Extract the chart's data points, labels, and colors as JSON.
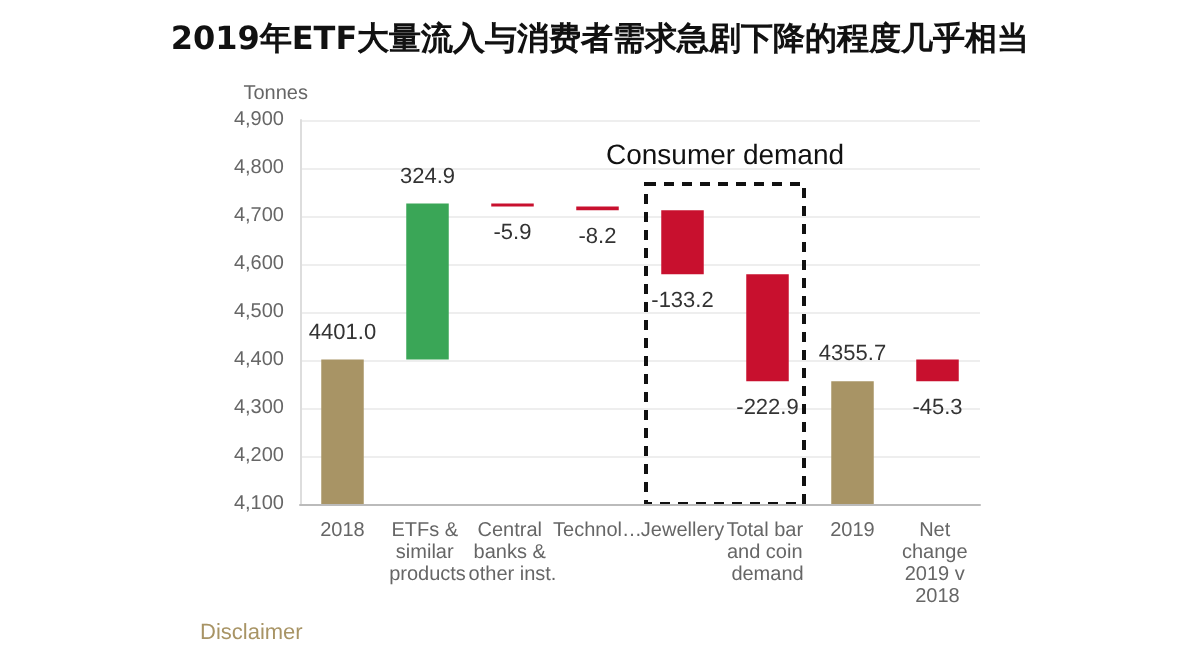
{
  "chart_data": {
    "type": "bar",
    "title": "2019年ETF大量流入与消费者需求急剧下降的程度几乎相当",
    "ylabel": "Tonnes",
    "categories": [
      "2018",
      "ETFs & similar products",
      "Central banks & other inst.",
      "Technol…",
      "Jewellery",
      "Total bar and coin demand",
      "2019",
      "Net change 2019 v 2018"
    ],
    "values": [
      4401.0,
      324.9,
      -5.9,
      -8.2,
      -133.2,
      -222.9,
      4355.7,
      -45.3
    ],
    "base": [
      null,
      4401.0,
      4725.9,
      4720.0,
      4711.8,
      4578.6,
      null,
      4401.0
    ],
    "colors": [
      "#a89465",
      "#3aa657",
      "#c8102e",
      "#c8102e",
      "#c8102e",
      "#c8102e",
      "#a89465",
      "#c8102e"
    ],
    "value_labels": [
      "4401.0",
      "324.9",
      "-5.9",
      "-8.2",
      "-133.2",
      "-222.9",
      "4355.7",
      "-45.3"
    ],
    "ylim": [
      4100,
      4900
    ],
    "yticks": [
      {
        "value": 4100,
        "label": "4,100"
      },
      {
        "value": 4200,
        "label": "4,200"
      },
      {
        "value": 4300,
        "label": "4,300"
      },
      {
        "value": 4400,
        "label": "4,400"
      },
      {
        "value": 4500,
        "label": "4,500"
      },
      {
        "value": 4600,
        "label": "4,600"
      },
      {
        "value": 4700,
        "label": "4,700"
      },
      {
        "value": 4800,
        "label": "4,800"
      },
      {
        "value": 4900,
        "label": "4,900"
      }
    ],
    "grid": "y",
    "annotations": [
      "Consumer demand",
      "Disclaimer"
    ]
  }
}
